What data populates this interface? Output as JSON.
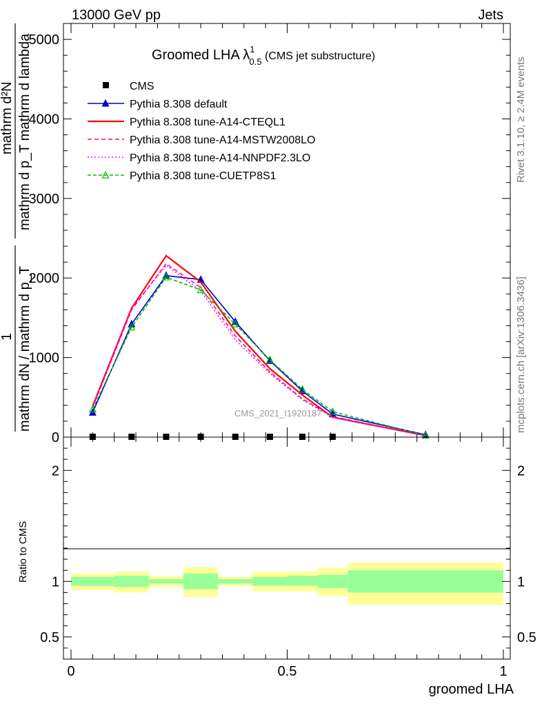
{
  "header": {
    "left": "13000 GeV pp",
    "right": "Jets"
  },
  "side_text": {
    "top": "Rivet 3.1.10, ≥ 2.4M events",
    "bottom": "mcplots.cern.ch [arXiv:1306.3436]"
  },
  "watermark": "CMS_2021_I1920187",
  "chart_data": [
    {
      "type": "line",
      "title": {
        "main": "Groomed LHA ",
        "lambda": "λ",
        "sup": "1",
        "sub": "0.5",
        "note": " (CMS jet substructure)"
      },
      "ylabel": {
        "numerator": "mathrm d²N",
        "denominator": "mathrm d p_T mathrm d lambda",
        "prefix_num": "1",
        "prefix_den": "mathrm dN / mathrm d p_T"
      },
      "xlim": [
        0,
        1
      ],
      "ylim": [
        0,
        5200
      ],
      "yticks": [
        0,
        1000,
        2000,
        3000,
        4000,
        5000
      ],
      "yticklabels": [
        "0",
        "1000",
        "2000",
        "3000",
        "4000",
        "5000"
      ],
      "legend_position": "top-left",
      "cms": {
        "name": "CMS",
        "x": [
          0.05,
          0.14,
          0.22,
          0.3,
          0.38,
          0.46,
          0.535,
          0.605
        ],
        "y": [
          0,
          0,
          0,
          0,
          0,
          0,
          0,
          0
        ]
      },
      "series": [
        {
          "name": "Pythia 8.308 default",
          "color": "#0000cc",
          "dash": "",
          "marker": "triangle-filled",
          "x": [
            0.05,
            0.14,
            0.22,
            0.3,
            0.38,
            0.46,
            0.535,
            0.605,
            0.82
          ],
          "y": [
            310,
            1420,
            2030,
            1980,
            1450,
            960,
            580,
            290,
            30
          ]
        },
        {
          "name": "Pythia 8.308 tune-A14-CTEQL1",
          "color": "#ff0000",
          "dash": "",
          "marker": "none",
          "x": [
            0.05,
            0.14,
            0.22,
            0.3,
            0.38,
            0.46,
            0.535,
            0.605,
            0.82
          ],
          "y": [
            390,
            1620,
            2280,
            1950,
            1330,
            860,
            530,
            250,
            20
          ]
        },
        {
          "name": "Pythia 8.308 tune-A14-MSTW2008LO",
          "color": "#ff0080",
          "dash": "6,4",
          "marker": "none",
          "x": [
            0.05,
            0.14,
            0.22,
            0.3,
            0.38,
            0.46,
            0.535,
            0.605,
            0.82
          ],
          "y": [
            370,
            1600,
            2180,
            1880,
            1270,
            820,
            480,
            260,
            15
          ]
        },
        {
          "name": "Pythia 8.308 tune-A14-NNPDF2.3LO",
          "color": "#ff00ff",
          "dash": "2,3",
          "marker": "none",
          "x": [
            0.05,
            0.14,
            0.22,
            0.3,
            0.38,
            0.46,
            0.535,
            0.605,
            0.82
          ],
          "y": [
            380,
            1620,
            2160,
            1840,
            1220,
            800,
            470,
            250,
            15
          ]
        },
        {
          "name": "Pythia 8.308 tune-CUETP8S1",
          "color": "#00bb00",
          "dash": "5,3",
          "marker": "triangle-open",
          "x": [
            0.05,
            0.14,
            0.22,
            0.3,
            0.38,
            0.46,
            0.535,
            0.605,
            0.82
          ],
          "y": [
            350,
            1380,
            2010,
            1850,
            1420,
            970,
            600,
            320,
            20
          ]
        }
      ]
    },
    {
      "type": "area",
      "ylabel": "Ratio to CMS",
      "xlabel": "groomed LHA",
      "xlim": [
        0,
        1
      ],
      "ylim": [
        0.3,
        2.3
      ],
      "yticks": [
        0.5,
        1,
        2
      ],
      "yticklabels": [
        "0.5",
        "1",
        "2"
      ],
      "xticks": [
        0,
        0.5,
        1
      ],
      "xticklabels": [
        "0",
        "0.5",
        "1"
      ],
      "band_colors": {
        "outer": "#ffff99",
        "inner": "#99ff99"
      },
      "bins": [
        {
          "x": [
            0.0,
            0.1
          ],
          "inner": [
            0.96,
            1.04
          ],
          "outer": [
            0.92,
            1.07
          ]
        },
        {
          "x": [
            0.1,
            0.18
          ],
          "inner": [
            0.95,
            1.05
          ],
          "outer": [
            0.9,
            1.09
          ]
        },
        {
          "x": [
            0.18,
            0.26
          ],
          "inner": [
            0.98,
            1.02
          ],
          "outer": [
            0.95,
            1.05
          ]
        },
        {
          "x": [
            0.26,
            0.34
          ],
          "inner": [
            0.93,
            1.07
          ],
          "outer": [
            0.86,
            1.13
          ]
        },
        {
          "x": [
            0.34,
            0.42
          ],
          "inner": [
            0.98,
            1.02
          ],
          "outer": [
            0.96,
            1.04
          ]
        },
        {
          "x": [
            0.42,
            0.5
          ],
          "inner": [
            0.96,
            1.04
          ],
          "outer": [
            0.91,
            1.09
          ]
        },
        {
          "x": [
            0.5,
            0.57
          ],
          "inner": [
            0.96,
            1.05
          ],
          "outer": [
            0.91,
            1.09
          ]
        },
        {
          "x": [
            0.57,
            0.64
          ],
          "inner": [
            0.94,
            1.06
          ],
          "outer": [
            0.87,
            1.12
          ]
        },
        {
          "x": [
            0.64,
            1.0
          ],
          "inner": [
            0.9,
            1.1
          ],
          "outer": [
            0.79,
            1.17
          ]
        }
      ]
    }
  ]
}
